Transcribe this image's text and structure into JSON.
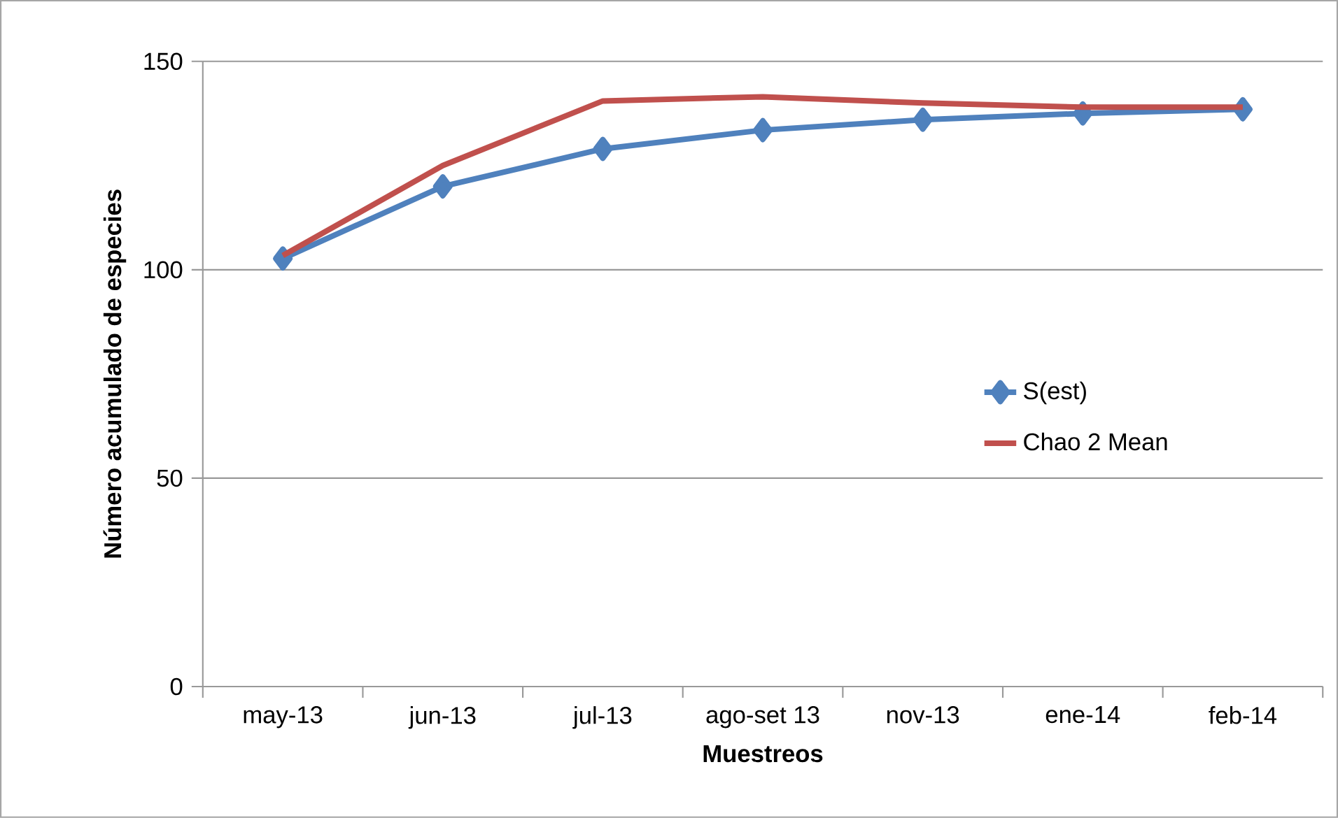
{
  "chart_data": {
    "type": "line",
    "xlabel": "Muestreos",
    "ylabel": "Número acumulado de especies",
    "categories": [
      "may-13",
      "jun-13",
      "jul-13",
      "ago-set 13",
      "nov-13",
      "ene-14",
      "feb-14"
    ],
    "series": [
      {
        "name": "S(est)",
        "color": "#4f81bd",
        "marker": "diamond",
        "values": [
          102.7,
          120,
          129,
          133.5,
          136,
          137.5,
          138.5
        ]
      },
      {
        "name": "Chao 2 Mean",
        "color": "#c0504d",
        "marker": "none",
        "values": [
          103.4,
          125,
          140.5,
          141.5,
          140,
          139,
          139
        ]
      }
    ],
    "ylim": [
      0,
      150
    ],
    "yticks": [
      0,
      50,
      100,
      150
    ],
    "grid": "y",
    "legend": "right"
  }
}
